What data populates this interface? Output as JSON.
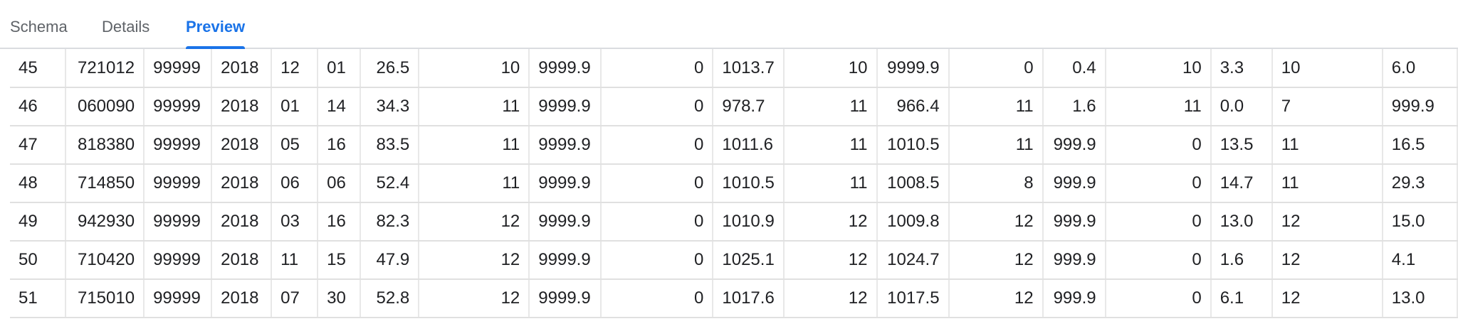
{
  "tabs": [
    {
      "label": "Schema",
      "active": false
    },
    {
      "label": "Details",
      "active": false
    },
    {
      "label": "Preview",
      "active": true
    }
  ],
  "accent_color": "#1a73e8",
  "rows": [
    [
      "45",
      "721012",
      "99999",
      "2018",
      "12",
      "01",
      "26.5",
      "10",
      "9999.9",
      "0",
      "1013.7",
      "10",
      "9999.9",
      "0",
      "0.4",
      "10",
      "3.3",
      "10",
      "6.0"
    ],
    [
      "46",
      "060090",
      "99999",
      "2018",
      "01",
      "14",
      "34.3",
      "11",
      "9999.9",
      "0",
      "978.7",
      "11",
      "966.4",
      "11",
      "1.6",
      "11",
      "0.0",
      "7",
      "999.9"
    ],
    [
      "47",
      "818380",
      "99999",
      "2018",
      "05",
      "16",
      "83.5",
      "11",
      "9999.9",
      "0",
      "1011.6",
      "11",
      "1010.5",
      "11",
      "999.9",
      "0",
      "13.5",
      "11",
      "16.5"
    ],
    [
      "48",
      "714850",
      "99999",
      "2018",
      "06",
      "06",
      "52.4",
      "11",
      "9999.9",
      "0",
      "1010.5",
      "11",
      "1008.5",
      "8",
      "999.9",
      "0",
      "14.7",
      "11",
      "29.3"
    ],
    [
      "49",
      "942930",
      "99999",
      "2018",
      "03",
      "16",
      "82.3",
      "12",
      "9999.9",
      "0",
      "1010.9",
      "12",
      "1009.8",
      "12",
      "999.9",
      "0",
      "13.0",
      "12",
      "15.0"
    ],
    [
      "50",
      "710420",
      "99999",
      "2018",
      "11",
      "15",
      "47.9",
      "12",
      "9999.9",
      "0",
      "1025.1",
      "12",
      "1024.7",
      "12",
      "999.9",
      "0",
      "1.6",
      "12",
      "4.1"
    ],
    [
      "51",
      "715010",
      "99999",
      "2018",
      "07",
      "30",
      "52.8",
      "12",
      "9999.9",
      "0",
      "1017.6",
      "12",
      "1017.5",
      "12",
      "999.9",
      "0",
      "6.1",
      "12",
      "13.0"
    ]
  ]
}
